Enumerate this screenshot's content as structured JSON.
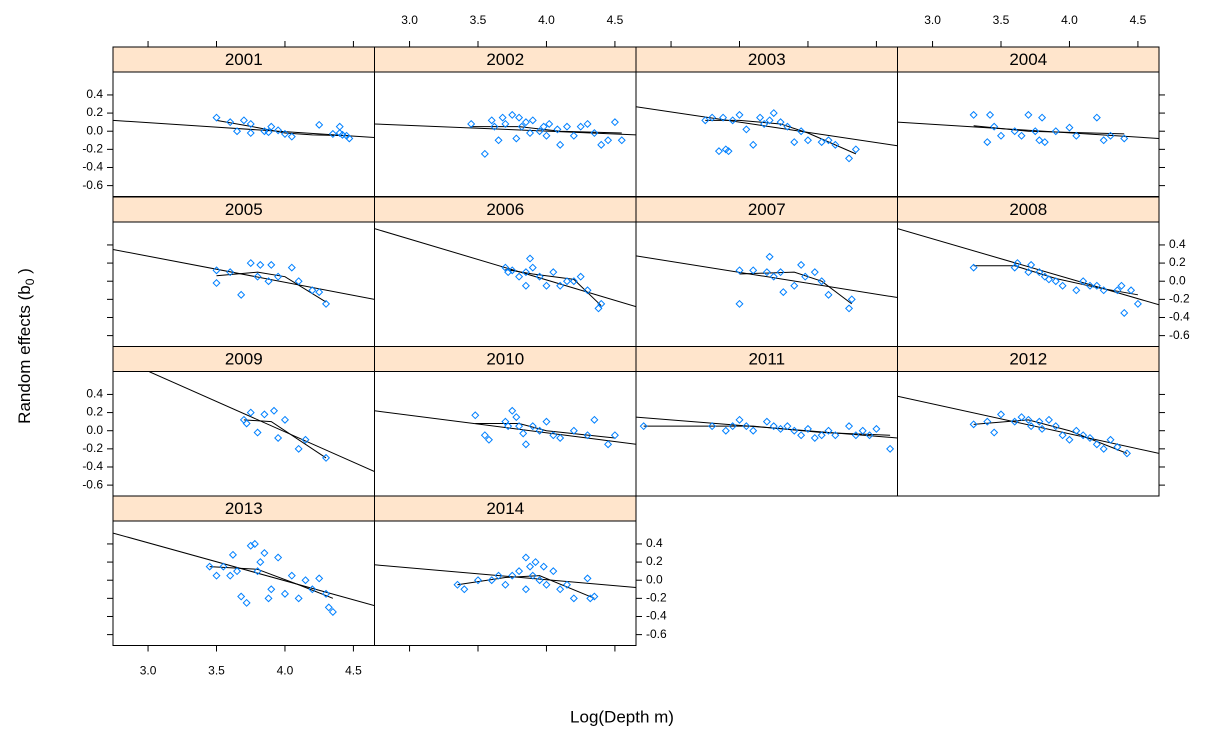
{
  "chart_data": {
    "type": "scatter",
    "xlabel": "Log(Depth m)",
    "ylabel": [
      "Random effects  (b",
      "0",
      " )"
    ],
    "xlim": [
      2.744,
      4.654
    ],
    "ylim": [
      -0.72,
      0.653
    ],
    "xticks": [
      {
        "value": 3,
        "label": "3.0"
      },
      3.5,
      {
        "value": 4,
        "label": "4.0"
      },
      4.5
    ],
    "yticks": [
      -0.6,
      -0.4,
      -0.2,
      {
        "value": 0,
        "label": "0.0"
      },
      0.2,
      0.4
    ],
    "point_color": "#0080ff",
    "line_color": "#000000",
    "strip_color": "#ffe5cc",
    "panels": [
      {
        "title": "2001",
        "x": [
          3.5,
          3.6,
          3.65,
          3.7,
          3.75,
          3.75,
          3.85,
          3.88,
          3.9,
          3.95,
          4.0,
          4.05,
          4.25,
          4.35,
          4.4,
          4.4,
          4.45,
          4.47,
          4.42
        ],
        "values": [
          0.15,
          0.1,
          0,
          0.12,
          0.08,
          -0.02,
          0,
          -0.01,
          0.05,
          0.01,
          -0.03,
          -0.06,
          0.07,
          -0.03,
          -0.02,
          0.05,
          -0.05,
          -0.08,
          -0.04
        ],
        "fit_x": [
          2.744,
          4.654
        ],
        "fit": [
          0.12,
          -0.07
        ],
        "smooth_x": [
          3.5,
          3.8,
          4.0,
          4.2,
          4.47
        ],
        "smooth": [
          0.12,
          0.04,
          -0.02,
          -0.04,
          -0.05
        ]
      },
      {
        "title": "2002",
        "x": [
          3.45,
          3.55,
          3.6,
          3.62,
          3.65,
          3.68,
          3.7,
          3.75,
          3.78,
          3.8,
          3.82,
          3.85,
          3.88,
          3.9,
          3.95,
          3.98,
          4.0,
          4.02,
          4.08,
          4.1,
          4.15,
          4.2,
          4.25,
          4.3,
          4.35,
          4.4,
          4.45,
          4.5,
          4.55
        ],
        "values": [
          0.08,
          -0.25,
          0.12,
          0.05,
          -0.1,
          0.15,
          0.08,
          0.18,
          -0.08,
          0.15,
          0.05,
          0.1,
          -0.02,
          0.12,
          0,
          0.05,
          -0.05,
          0.08,
          0.02,
          -0.15,
          0.05,
          -0.05,
          0.05,
          0.08,
          -0.02,
          -0.15,
          -0.1,
          0.1,
          -0.1
        ],
        "fit_x": [
          2.744,
          4.654
        ],
        "fit": [
          0.08,
          -0.04
        ],
        "smooth_x": [
          3.45,
          3.8,
          4.1,
          4.55
        ],
        "smooth": [
          0.05,
          0.05,
          0,
          -0.02
        ]
      },
      {
        "title": "2003",
        "x": [
          3.25,
          3.3,
          3.35,
          3.38,
          3.4,
          3.42,
          3.45,
          3.5,
          3.55,
          3.6,
          3.65,
          3.68,
          3.72,
          3.75,
          3.8,
          3.85,
          3.9,
          3.95,
          4.0,
          4.1,
          4.15,
          4.2,
          4.3,
          4.35
        ],
        "values": [
          0.12,
          0.15,
          -0.22,
          0.15,
          -0.2,
          -0.22,
          0.12,
          0.18,
          0.02,
          -0.15,
          0.15,
          0.08,
          0.12,
          0.2,
          0.1,
          0.05,
          -0.12,
          0,
          -0.1,
          -0.12,
          -0.1,
          -0.15,
          -0.3,
          -0.2
        ],
        "fit_x": [
          2.744,
          4.654
        ],
        "fit": [
          0.27,
          -0.16
        ],
        "smooth_x": [
          3.25,
          3.5,
          3.8,
          4.0,
          4.35
        ],
        "smooth": [
          0.12,
          0.12,
          0.08,
          -0.02,
          -0.25
        ]
      },
      {
        "title": "2004",
        "x": [
          3.3,
          3.4,
          3.42,
          3.45,
          3.5,
          3.6,
          3.65,
          3.7,
          3.75,
          3.78,
          3.8,
          3.82,
          3.9,
          4.0,
          4.05,
          4.2,
          4.25,
          4.3,
          4.4
        ],
        "values": [
          0.18,
          -0.12,
          0.18,
          0.05,
          -0.05,
          0,
          -0.05,
          0.18,
          0,
          -0.1,
          0.15,
          -0.12,
          0,
          0.04,
          -0.05,
          0.15,
          -0.1,
          -0.05,
          -0.08
        ],
        "fit_x": [
          2.744,
          4.654
        ],
        "fit": [
          0.1,
          -0.08
        ],
        "smooth_x": [
          3.3,
          3.7,
          4.4
        ],
        "smooth": [
          0.06,
          0,
          -0.03
        ]
      },
      {
        "title": "2005",
        "x": [
          3.5,
          3.5,
          3.6,
          3.68,
          3.75,
          3.8,
          3.82,
          3.88,
          3.9,
          3.95,
          4.05,
          4.1,
          4.2,
          4.25,
          4.3
        ],
        "values": [
          0.12,
          -0.02,
          0.1,
          -0.15,
          0.2,
          0.05,
          0.18,
          0,
          0.18,
          0.05,
          0.15,
          0,
          -0.1,
          -0.12,
          -0.25
        ],
        "fit_x": [
          2.744,
          4.654
        ],
        "fit": [
          0.35,
          -0.2
        ],
        "smooth_x": [
          3.5,
          3.8,
          4.0,
          4.3
        ],
        "smooth": [
          0.06,
          0.1,
          0.05,
          -0.23
        ]
      },
      {
        "title": "2006",
        "x": [
          3.7,
          3.72,
          3.75,
          3.8,
          3.85,
          3.85,
          3.88,
          3.9,
          3.95,
          4.0,
          4.05,
          4.1,
          4.15,
          4.2,
          4.25,
          4.3,
          4.38,
          4.4
        ],
        "values": [
          0.15,
          0.1,
          0.12,
          0.05,
          0.1,
          -0.05,
          0.25,
          0.15,
          0.05,
          -0.05,
          0.1,
          -0.05,
          0,
          0,
          0.05,
          -0.1,
          -0.3,
          -0.25
        ],
        "fit_x": [
          2.744,
          4.654
        ],
        "fit": [
          0.58,
          -0.28
        ],
        "smooth_x": [
          3.7,
          3.9,
          4.2,
          4.4
        ],
        "smooth": [
          0.13,
          0.08,
          0.02,
          -0.27
        ]
      },
      {
        "title": "2007",
        "x": [
          3.5,
          3.5,
          3.6,
          3.7,
          3.72,
          3.75,
          3.8,
          3.82,
          3.9,
          3.95,
          3.98,
          4.05,
          4.1,
          4.15,
          4.3,
          4.32
        ],
        "values": [
          0.12,
          -0.25,
          0.12,
          0.1,
          0.27,
          0.05,
          0.1,
          -0.12,
          -0.05,
          0.18,
          0.05,
          0.1,
          0,
          -0.15,
          -0.3,
          -0.2
        ],
        "fit_x": [
          2.744,
          4.654
        ],
        "fit": [
          0.28,
          -0.18
        ],
        "smooth_x": [
          3.5,
          3.9,
          4.1,
          4.32
        ],
        "smooth": [
          0.08,
          0.1,
          0,
          -0.25
        ]
      },
      {
        "title": "2008",
        "x": [
          3.3,
          3.6,
          3.62,
          3.7,
          3.72,
          3.78,
          3.82,
          3.85,
          3.9,
          3.95,
          4.05,
          4.1,
          4.15,
          4.2,
          4.25,
          4.35,
          4.38,
          4.4,
          4.45,
          4.5
        ],
        "values": [
          0.15,
          0.15,
          0.2,
          0.1,
          0.18,
          0.1,
          0.05,
          0.02,
          0,
          -0.05,
          -0.1,
          0,
          -0.05,
          -0.05,
          -0.1,
          -0.1,
          -0.05,
          -0.35,
          -0.1,
          -0.25
        ],
        "fit_x": [
          2.744,
          4.654
        ],
        "fit": [
          0.58,
          -0.26
        ],
        "smooth_x": [
          3.3,
          3.6,
          3.9,
          4.2,
          4.5
        ],
        "smooth": [
          0.17,
          0.17,
          0.03,
          -0.07,
          -0.15
        ]
      },
      {
        "title": "2009",
        "x": [
          3.7,
          3.72,
          3.75,
          3.8,
          3.85,
          3.92,
          3.95,
          4.0,
          4.1,
          4.15,
          4.3
        ],
        "values": [
          0.12,
          0.08,
          0.2,
          -0.02,
          0.18,
          0.22,
          -0.08,
          0.12,
          -0.2,
          -0.1,
          -0.3
        ],
        "fit_x": [
          3.01,
          4.654
        ],
        "fit": [
          0.65,
          -0.45
        ],
        "smooth_x": [
          3.7,
          3.9,
          4.3
        ],
        "smooth": [
          0.12,
          0.1,
          -0.3
        ]
      },
      {
        "title": "2010",
        "x": [
          3.48,
          3.55,
          3.58,
          3.7,
          3.72,
          3.75,
          3.78,
          3.8,
          3.83,
          3.85,
          3.9,
          3.95,
          4.0,
          4.05,
          4.1,
          4.2,
          4.3,
          4.35,
          4.45,
          4.5
        ],
        "values": [
          0.17,
          -0.05,
          -0.1,
          0.1,
          0.05,
          0.22,
          0.15,
          0.05,
          -0.03,
          -0.15,
          0.05,
          0,
          0.1,
          -0.05,
          -0.08,
          0,
          -0.05,
          0.12,
          -0.15,
          -0.05
        ],
        "fit_x": [
          2.744,
          4.654
        ],
        "fit": [
          0.22,
          -0.15
        ],
        "smooth_x": [
          3.48,
          3.8,
          4.0,
          4.5
        ],
        "smooth": [
          0.08,
          0.08,
          0,
          -0.08
        ]
      },
      {
        "title": "2011",
        "x": [
          2.8,
          3.3,
          3.4,
          3.45,
          3.5,
          3.55,
          3.6,
          3.7,
          3.75,
          3.8,
          3.85,
          3.9,
          3.95,
          4.0,
          4.05,
          4.1,
          4.15,
          4.2,
          4.3,
          4.35,
          4.4,
          4.45,
          4.5,
          4.6
        ],
        "values": [
          0.05,
          0.05,
          0,
          0.05,
          0.12,
          0.05,
          0,
          0.1,
          0.05,
          0.02,
          0.05,
          0,
          -0.05,
          0.02,
          -0.08,
          -0.05,
          0,
          -0.05,
          0.05,
          -0.05,
          0,
          -0.05,
          0.02,
          -0.2
        ],
        "fit_x": [
          2.744,
          4.654
        ],
        "fit": [
          0.15,
          -0.08
        ],
        "smooth_x": [
          2.8,
          3.6,
          4.1,
          4.6
        ],
        "smooth": [
          0.05,
          0.05,
          -0.02,
          -0.05
        ]
      },
      {
        "title": "2012",
        "x": [
          3.3,
          3.4,
          3.45,
          3.5,
          3.6,
          3.65,
          3.7,
          3.72,
          3.78,
          3.8,
          3.85,
          3.9,
          3.95,
          4.0,
          4.05,
          4.1,
          4.15,
          4.2,
          4.25,
          4.3,
          4.35,
          4.42
        ],
        "values": [
          0.07,
          0.1,
          -0.02,
          0.18,
          0.1,
          0.15,
          0.12,
          0.05,
          0.1,
          0.02,
          0.12,
          0.05,
          -0.05,
          -0.1,
          0,
          -0.05,
          -0.08,
          -0.15,
          -0.2,
          -0.1,
          -0.18,
          -0.25
        ],
        "fit_x": [
          2.744,
          4.654
        ],
        "fit": [
          0.38,
          -0.25
        ],
        "smooth_x": [
          3.3,
          3.7,
          4.0,
          4.42
        ],
        "smooth": [
          0.07,
          0.12,
          0,
          -0.25
        ]
      },
      {
        "title": "2013",
        "x": [
          3.45,
          3.5,
          3.55,
          3.6,
          3.62,
          3.65,
          3.68,
          3.72,
          3.75,
          3.78,
          3.8,
          3.82,
          3.85,
          3.88,
          3.9,
          3.95,
          4.0,
          4.05,
          4.1,
          4.15,
          4.2,
          4.25,
          4.3,
          4.32,
          4.35
        ],
        "values": [
          0.15,
          0.05,
          0.15,
          0.05,
          0.28,
          0.1,
          -0.18,
          -0.25,
          0.38,
          0.4,
          0.1,
          0.2,
          0.3,
          -0.2,
          -0.1,
          0.25,
          -0.15,
          0.05,
          -0.2,
          0,
          -0.1,
          0.02,
          -0.15,
          -0.3,
          -0.35
        ],
        "fit_x": [
          2.744,
          4.654
        ],
        "fit": [
          0.52,
          -0.28
        ],
        "smooth_x": [
          3.45,
          3.8,
          4.1,
          4.35
        ],
        "smooth": [
          0.15,
          0.12,
          -0.05,
          -0.2
        ]
      },
      {
        "title": "2014",
        "x": [
          3.35,
          3.4,
          3.5,
          3.6,
          3.65,
          3.7,
          3.75,
          3.8,
          3.85,
          3.85,
          3.88,
          3.9,
          3.92,
          3.95,
          3.98,
          4.0,
          4.05,
          4.1,
          4.15,
          4.2,
          4.3,
          4.32,
          4.35
        ],
        "values": [
          -0.05,
          -0.1,
          0,
          0,
          0.05,
          -0.05,
          0.05,
          0.1,
          0.25,
          -0.1,
          0.15,
          0.05,
          0.2,
          0,
          0.15,
          -0.05,
          0.1,
          -0.1,
          -0.05,
          -0.2,
          0.02,
          -0.2,
          -0.18
        ],
        "fit_x": [
          2.744,
          4.654
        ],
        "fit": [
          0.17,
          -0.08
        ],
        "smooth_x": [
          3.35,
          3.7,
          3.95,
          4.35
        ],
        "smooth": [
          -0.05,
          0.03,
          0.05,
          -0.2
        ]
      }
    ]
  }
}
